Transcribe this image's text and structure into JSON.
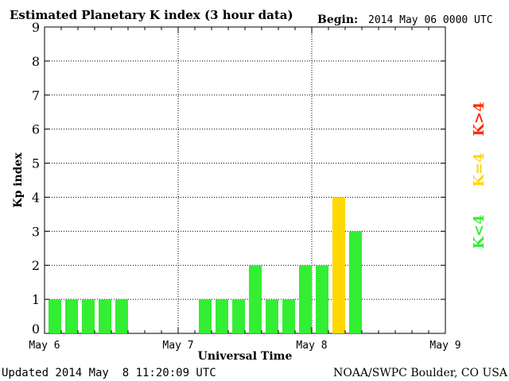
{
  "chart_data": {
    "type": "bar",
    "title": "Estimated Planetary K index (3 hour data)",
    "begin_label": "Begin:",
    "begin_value": "2014 May 06 0000 UTC",
    "xlabel": "Universal Time",
    "ylabel": "Kp index",
    "ylim": [
      0,
      9
    ],
    "yticks": [
      0,
      1,
      2,
      3,
      4,
      5,
      6,
      7,
      8,
      9
    ],
    "x_tick_labels": [
      "May 6",
      "May 7",
      "May 8",
      "May 9"
    ],
    "slots_total": 24,
    "grid": true,
    "values": [
      1,
      1,
      1,
      1,
      1,
      null,
      null,
      null,
      null,
      1,
      1,
      1,
      2,
      1,
      1,
      2,
      2,
      4,
      3
    ],
    "colors": {
      "low": "#33ee33",
      "mid": "#ffd700",
      "high": "#ff2a00"
    },
    "legend": [
      {
        "label": "K<4",
        "color": "#33ee33"
      },
      {
        "label": "K=4",
        "color": "#ffd700"
      },
      {
        "label": "K>4",
        "color": "#ff2a00"
      }
    ]
  },
  "footer": {
    "updated": "Updated 2014 May  8 11:20:09 UTC",
    "source": "NOAA/SWPC Boulder, CO USA"
  }
}
